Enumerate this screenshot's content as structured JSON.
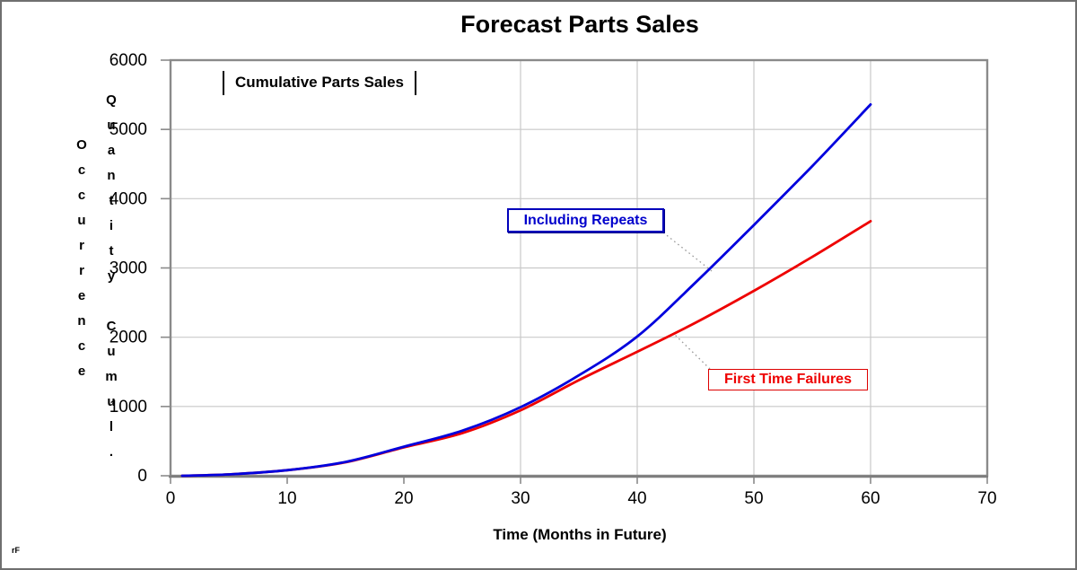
{
  "window": {
    "footnote": "rF"
  },
  "chart_data": {
    "type": "line",
    "title": "Forecast Parts Sales",
    "inner_label": "Cumulative Parts Sales",
    "xlabel": "Time (Months in Future)",
    "ylabel_lines": [
      "Occurrence",
      "Quantity Cumul."
    ],
    "xlim": [
      0,
      70
    ],
    "ylim": [
      0,
      6000
    ],
    "xticks": [
      0,
      10,
      20,
      30,
      40,
      50,
      60,
      70
    ],
    "yticks": [
      0,
      1000,
      2000,
      3000,
      4000,
      5000,
      6000
    ],
    "x_gridlines": [
      30,
      40,
      50,
      60,
      70
    ],
    "y_gridlines": [
      1000,
      2000,
      3000,
      4000,
      5000
    ],
    "grid_on": true,
    "legend_position": "callout-boxes-on-plot",
    "x": [
      1,
      5,
      10,
      15,
      20,
      25,
      30,
      35,
      40,
      45,
      50,
      55,
      60
    ],
    "series": [
      {
        "name": "First Time Failures",
        "color": "#ee0000",
        "values": [
          0,
          20,
          80,
          195,
          410,
          615,
          945,
          1380,
          1790,
          2210,
          2670,
          3160,
          3675
        ]
      },
      {
        "name": "Including Repeats",
        "color": "#0000dd",
        "values": [
          0,
          20,
          80,
          200,
          420,
          650,
          990,
          1450,
          2010,
          2790,
          3620,
          4470,
          5360
        ]
      }
    ],
    "colors": {
      "grid": "#c9c9c9",
      "axis_frame": "#8a8a8a",
      "leader_line": "#999999",
      "text": "#000000"
    }
  }
}
